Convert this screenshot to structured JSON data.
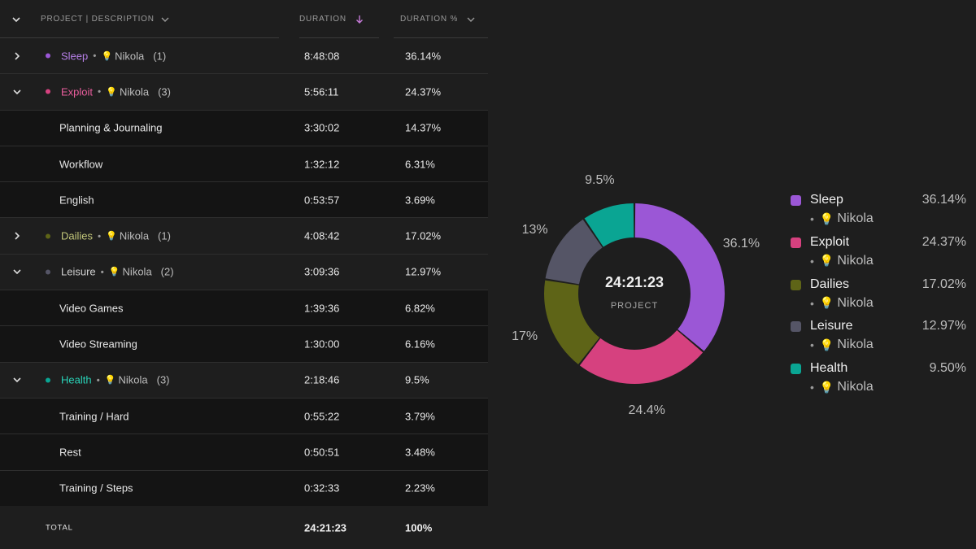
{
  "header": {
    "project_label": "PROJECT | DESCRIPTION",
    "duration_label": "DURATION",
    "duration_pct_label": "DURATION %"
  },
  "colors": {
    "sleep": "#9b57d6",
    "exploit": "#d6417f",
    "dailies": "#5e6417",
    "leisure": "#555566",
    "health": "#0aa593",
    "sleep_text": "#b57fe6",
    "exploit_text": "#e85d9c",
    "dailies_text": "#c3c77a",
    "leisure_text": "#cfcfcf",
    "health_text": "#29d3b8"
  },
  "rows": [
    {
      "type": "project",
      "name": "Sleep",
      "client": "Nikola",
      "count": "(1)",
      "duration": "8:48:08",
      "pct": "36.14%"
    },
    {
      "type": "project",
      "name": "Exploit",
      "client": "Nikola",
      "count": "(3)",
      "duration": "5:56:11",
      "pct": "24.37%"
    },
    {
      "type": "sub",
      "desc": "Planning & Journaling",
      "duration": "3:30:02",
      "pct": "14.37%"
    },
    {
      "type": "sub",
      "desc": "Workflow",
      "duration": "1:32:12",
      "pct": "6.31%"
    },
    {
      "type": "sub",
      "desc": "English",
      "duration": "0:53:57",
      "pct": "3.69%"
    },
    {
      "type": "project",
      "name": "Dailies",
      "client": "Nikola",
      "count": "(1)",
      "duration": "4:08:42",
      "pct": "17.02%"
    },
    {
      "type": "project",
      "name": "Leisure",
      "client": "Nikola",
      "count": "(2)",
      "duration": "3:09:36",
      "pct": "12.97%"
    },
    {
      "type": "sub",
      "desc": "Video Games",
      "duration": "1:39:36",
      "pct": "6.82%"
    },
    {
      "type": "sub",
      "desc": "Video Streaming",
      "duration": "1:30:00",
      "pct": "6.16%"
    },
    {
      "type": "project",
      "name": "Health",
      "client": "Nikola",
      "count": "(3)",
      "duration": "2:18:46",
      "pct": "9.5%"
    },
    {
      "type": "sub",
      "desc": "Training / Hard",
      "duration": "0:55:22",
      "pct": "3.79%"
    },
    {
      "type": "sub",
      "desc": "Rest",
      "duration": "0:50:51",
      "pct": "3.48%"
    },
    {
      "type": "sub",
      "desc": "Training / Steps",
      "duration": "0:32:33",
      "pct": "2.23%"
    }
  ],
  "total": {
    "label": "TOTAL",
    "duration": "24:21:23",
    "pct": "100%"
  },
  "donut": {
    "center_time": "24:21:23",
    "center_label": "PROJECT"
  },
  "chart_data": {
    "type": "pie",
    "categories": [
      "Sleep",
      "Exploit",
      "Dailies",
      "Leisure",
      "Health"
    ],
    "values": [
      36.14,
      24.37,
      17.02,
      12.97,
      9.5
    ],
    "slice_labels": [
      "36.1%",
      "24.4%",
      "17%",
      "13%",
      "9.5%"
    ],
    "colors": [
      "#9b57d6",
      "#d6417f",
      "#5e6417",
      "#555566",
      "#0aa593"
    ],
    "legend": [
      {
        "name": "Sleep",
        "client": "Nikola",
        "pct": "36.14%"
      },
      {
        "name": "Exploit",
        "client": "Nikola",
        "pct": "24.37%"
      },
      {
        "name": "Dailies",
        "client": "Nikola",
        "pct": "17.02%"
      },
      {
        "name": "Leisure",
        "client": "Nikola",
        "pct": "12.97%"
      },
      {
        "name": "Health",
        "client": "Nikola",
        "pct": "9.50%"
      }
    ],
    "legend_position": "right"
  }
}
